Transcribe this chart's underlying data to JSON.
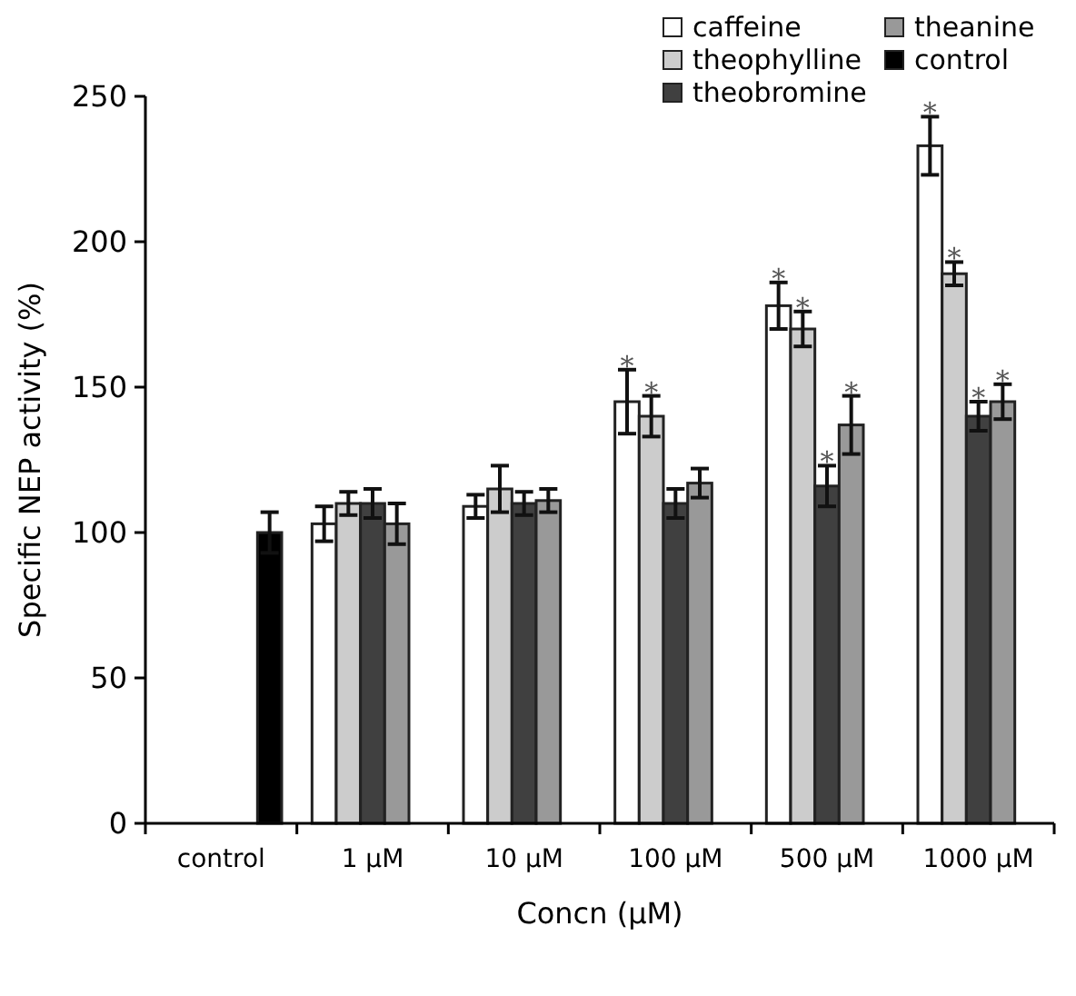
{
  "chart_data": {
    "type": "bar",
    "xlabel": "Concn (μM)",
    "ylabel": "Specific NEP activity (%)",
    "categories": [
      "control",
      "1 μM",
      "10 μM",
      "100 μM",
      "500 μM",
      "1000 μM"
    ],
    "series": [
      {
        "name": "caffeine",
        "color": "#ffffff",
        "values": [
          null,
          103,
          109,
          145,
          178,
          233
        ],
        "errors": [
          null,
          6,
          4,
          11,
          8,
          10
        ],
        "value_labels": [
          null,
          null,
          null,
          "*",
          "*",
          "*"
        ]
      },
      {
        "name": "theophylline",
        "color": "#cccccc",
        "values": [
          null,
          110,
          115,
          140,
          170,
          189
        ],
        "errors": [
          null,
          4,
          8,
          7,
          6,
          4
        ],
        "value_labels": [
          null,
          null,
          null,
          "*",
          "*",
          "*"
        ]
      },
      {
        "name": "theobromine",
        "color": "#404040",
        "values": [
          null,
          110,
          110,
          110,
          116,
          140
        ],
        "errors": [
          null,
          5,
          4,
          5,
          7,
          5
        ],
        "value_labels": [
          null,
          null,
          null,
          null,
          "*",
          "*"
        ]
      },
      {
        "name": "theanine",
        "color": "#999999",
        "values": [
          null,
          103,
          111,
          117,
          137,
          145
        ],
        "errors": [
          null,
          7,
          4,
          5,
          10,
          6
        ],
        "value_labels": [
          null,
          null,
          null,
          null,
          "*",
          "*"
        ]
      },
      {
        "name": "control",
        "color": "#000000",
        "values": [
          100,
          null,
          null,
          null,
          null,
          null
        ],
        "errors": [
          7,
          null,
          null,
          null,
          null,
          null
        ]
      }
    ],
    "ylim": [
      0,
      250
    ],
    "yticks": [
      0,
      50,
      100,
      150,
      200,
      250
    ],
    "legend": "top"
  }
}
